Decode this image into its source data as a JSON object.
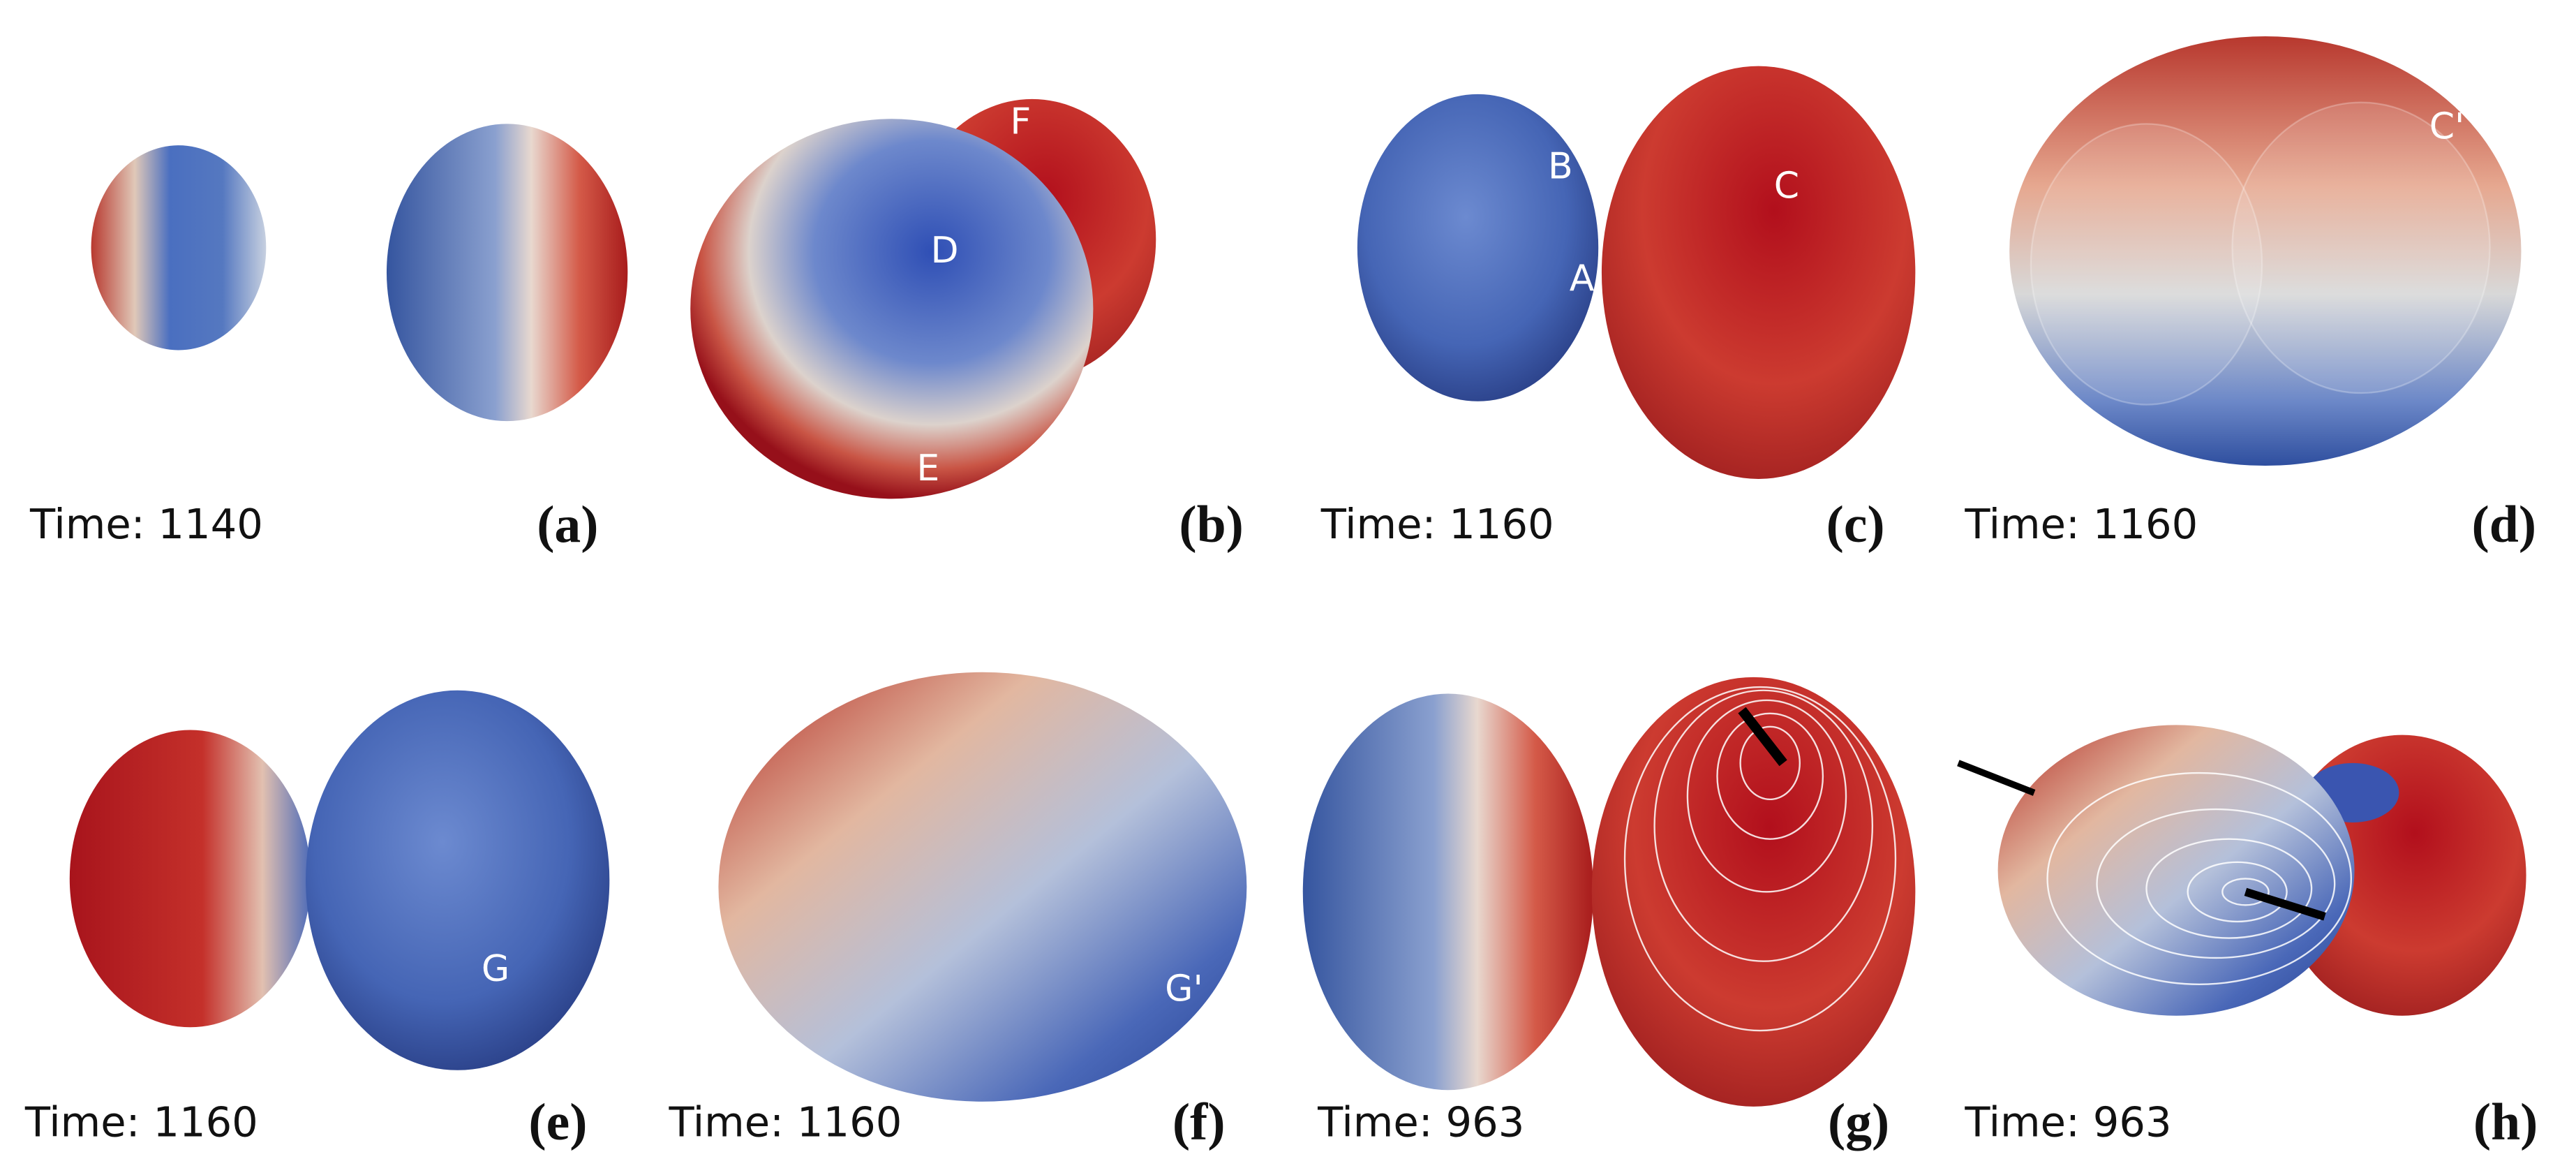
{
  "panels": [
    {
      "time": "Time: 1140",
      "label": "(a)"
    },
    {
      "label": "(b)",
      "annotations": [
        "D",
        "E",
        "F"
      ]
    },
    {
      "time": "Time: 1160",
      "label": "(c)",
      "annotations": [
        "B",
        "C",
        "A"
      ]
    },
    {
      "time": "Time: 1160",
      "label": "(d)",
      "annotations": [
        "C'"
      ]
    },
    {
      "time": "Time: 1160",
      "label": "(e)",
      "annotations": [
        "G"
      ]
    },
    {
      "time": "Time: 1160",
      "label": "(f)",
      "annotations": [
        "G'"
      ]
    },
    {
      "time": "Time: 963",
      "label": "(g)"
    },
    {
      "time": "Time: 963",
      "label": "(h)"
    }
  ]
}
